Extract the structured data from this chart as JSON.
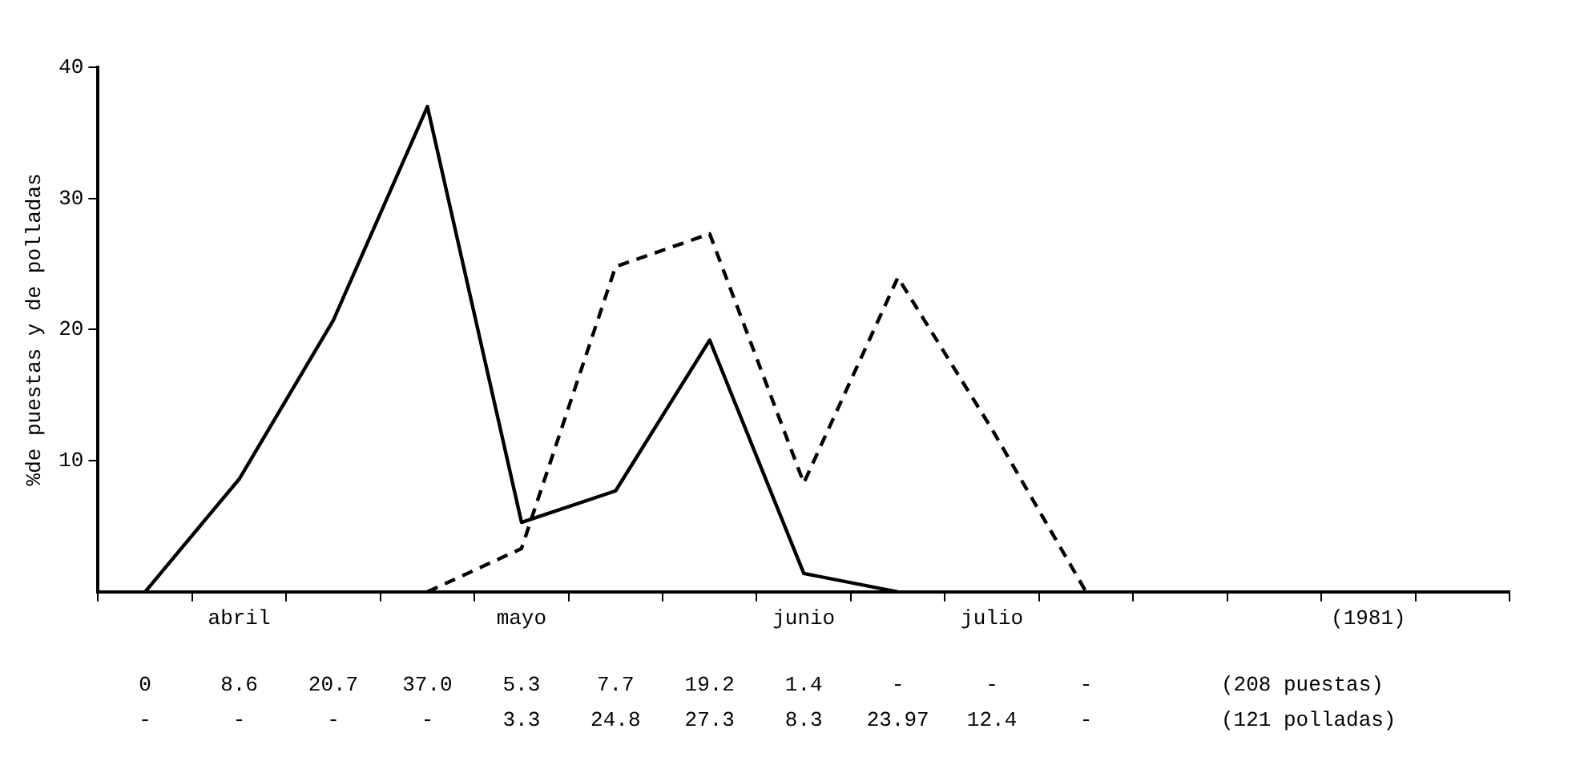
{
  "chart_data": {
    "type": "line",
    "ylabel": "%de puestas y de polladas",
    "categories": [
      null,
      "abril",
      null,
      null,
      "mayo",
      null,
      null,
      "junio",
      null,
      "julio",
      null,
      null,
      null,
      "(1981)",
      null
    ],
    "ylim": [
      0,
      40
    ],
    "yticks": [
      10,
      20,
      30,
      40
    ],
    "grid": false,
    "legend": false,
    "marker": "none",
    "series": [
      {
        "name": "(208 puestas)",
        "color": "#000000",
        "line_style": "solid",
        "values": [
          0,
          8.6,
          20.7,
          37.0,
          5.3,
          7.7,
          19.2,
          1.4,
          0,
          null,
          null,
          null,
          null,
          null,
          null
        ],
        "value_labels": [
          "0",
          "8.6",
          "20.7",
          "37.0",
          "5.3",
          "7.7",
          "19.2",
          "1.4",
          "-",
          "-",
          "-",
          null,
          null,
          null,
          null
        ]
      },
      {
        "name": "(121 polladas)",
        "color": "#000000",
        "line_style": "dashed",
        "values": [
          null,
          null,
          null,
          0,
          3.3,
          24.8,
          27.3,
          8.3,
          23.97,
          12.4,
          0,
          null,
          null,
          null,
          null
        ],
        "value_labels": [
          "-",
          "-",
          "-",
          "-",
          "3.3",
          "24.8",
          "27.3",
          "8.3",
          "23.97",
          "12.4",
          "-",
          null,
          null,
          null,
          null
        ]
      }
    ]
  }
}
